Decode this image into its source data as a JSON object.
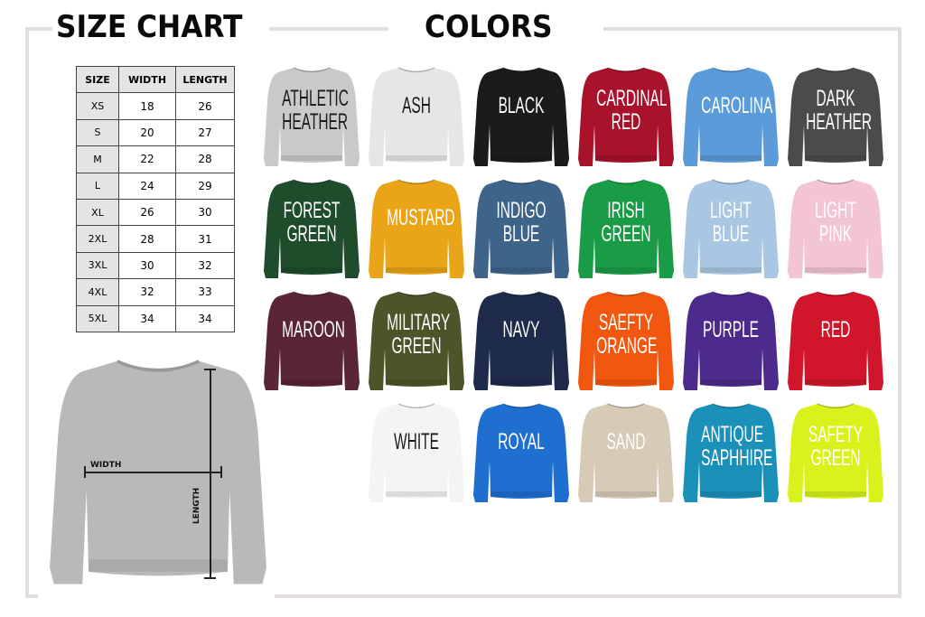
{
  "headings": {
    "size_chart": "SIZE CHART",
    "colors": "COLORS"
  },
  "size_table": {
    "headers": [
      "SIZE",
      "WIDTH",
      "LENGTH"
    ],
    "rows": [
      [
        "XS",
        "18",
        "26"
      ],
      [
        "S",
        "20",
        "27"
      ],
      [
        "M",
        "22",
        "28"
      ],
      [
        "L",
        "24",
        "29"
      ],
      [
        "XL",
        "26",
        "30"
      ],
      [
        "2XL",
        "28",
        "31"
      ],
      [
        "3XL",
        "30",
        "32"
      ],
      [
        "4XL",
        "32",
        "33"
      ],
      [
        "5XL",
        "34",
        "34"
      ]
    ]
  },
  "diagram": {
    "width_label": "WIDTH",
    "length_label": "LENGTH",
    "shirt_color": "#b9b9b9"
  },
  "colors": [
    {
      "name": "ATHLETIC HEATHER",
      "lines": [
        "ATHLETIC",
        "HEATHER"
      ],
      "hex": "#c9c9c9",
      "text": "#1a1a1a"
    },
    {
      "name": "ASH",
      "lines": [
        "ASH"
      ],
      "hex": "#e6e6e6",
      "text": "#1a1a1a"
    },
    {
      "name": "BLACK",
      "lines": [
        "BLACK"
      ],
      "hex": "#1b1b1b",
      "text": "#ffffff"
    },
    {
      "name": "CARDINAL RED",
      "lines": [
        "CARDINAL",
        "RED"
      ],
      "hex": "#a8122b",
      "text": "#ffffff"
    },
    {
      "name": "CAROLINA",
      "lines": [
        "CAROLINA"
      ],
      "hex": "#5c9bd9",
      "text": "#ffffff"
    },
    {
      "name": "DARK HEATHER",
      "lines": [
        "DARK",
        "HEATHER"
      ],
      "hex": "#4b4b4d",
      "text": "#ffffff"
    },
    {
      "name": "FOREST GREEN",
      "lines": [
        "FOREST",
        "GREEN"
      ],
      "hex": "#1f4d2c",
      "text": "#ffffff"
    },
    {
      "name": "MUSTARD",
      "lines": [
        "MUSTARD"
      ],
      "hex": "#e9a417",
      "text": "#ffffff"
    },
    {
      "name": "INDIGO BLUE",
      "lines": [
        "INDIGO",
        "BLUE"
      ],
      "hex": "#3f6489",
      "text": "#ffffff"
    },
    {
      "name": "IRISH GREEN",
      "lines": [
        "IRISH",
        "GREEN"
      ],
      "hex": "#1a9b46",
      "text": "#ffffff"
    },
    {
      "name": "LIGHT BLUE",
      "lines": [
        "LIGHT",
        "BLUE"
      ],
      "hex": "#a9c7e3",
      "text": "#ffffff"
    },
    {
      "name": "LIGHT PINK",
      "lines": [
        "LIGHT",
        "PINK"
      ],
      "hex": "#f3c5d3",
      "text": "#ffffff"
    },
    {
      "name": "MAROON",
      "lines": [
        "MAROON"
      ],
      "hex": "#5b2538",
      "text": "#ffffff"
    },
    {
      "name": "MILITARY GREEN",
      "lines": [
        "MILITARY",
        "GREEN"
      ],
      "hex": "#4b5529",
      "text": "#ffffff"
    },
    {
      "name": "NAVY",
      "lines": [
        "NAVY"
      ],
      "hex": "#1e2b4b",
      "text": "#ffffff"
    },
    {
      "name": "SAEFTY ORANGE",
      "lines": [
        "SAEFTY",
        "ORANGE"
      ],
      "hex": "#f2570f",
      "text": "#ffffff"
    },
    {
      "name": "PURPLE",
      "lines": [
        "PURPLE"
      ],
      "hex": "#4c2b8d",
      "text": "#ffffff"
    },
    {
      "name": "RED",
      "lines": [
        "RED"
      ],
      "hex": "#d1152b",
      "text": "#ffffff"
    },
    {
      "name": "WHITE",
      "lines": [
        "WHITE"
      ],
      "hex": "#f4f4f4",
      "text": "#1a1a1a"
    },
    {
      "name": "ROYAL",
      "lines": [
        "ROYAL"
      ],
      "hex": "#1f6fd0",
      "text": "#ffffff"
    },
    {
      "name": "SAND",
      "lines": [
        "SAND"
      ],
      "hex": "#d7cab6",
      "text": "#ffffff"
    },
    {
      "name": "ANTIQUE SAPHHIRE",
      "lines": [
        "ANTIQUE",
        "SAPHHIRE"
      ],
      "hex": "#1b90b9",
      "text": "#ffffff"
    },
    {
      "name": "SAFETY GREEN",
      "lines": [
        "SAFETY",
        "GREEN"
      ],
      "hex": "#d9f21b",
      "text": "#ffffff"
    }
  ]
}
